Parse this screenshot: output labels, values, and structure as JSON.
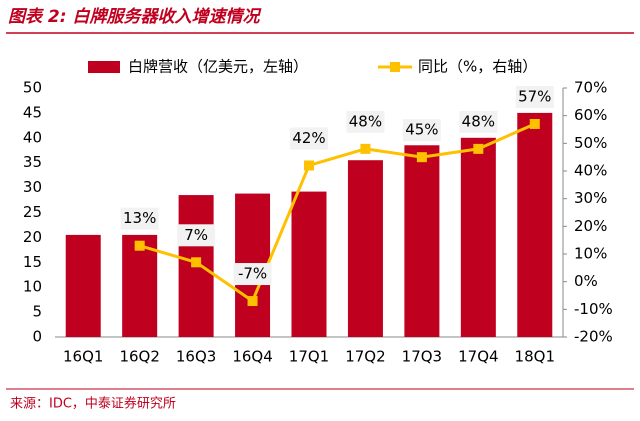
{
  "chart_data": {
    "type": "combo",
    "title": "图表 2: 白牌服务器收入增速情况",
    "source": "来源：IDC，中泰证券研究所",
    "categories": [
      "16Q1",
      "16Q2",
      "16Q3",
      "16Q4",
      "17Q1",
      "17Q2",
      "17Q3",
      "17Q4",
      "18Q1"
    ],
    "series": [
      {
        "name": "白牌营收（亿美元，左轴）",
        "type": "bar",
        "color": "#c0001f",
        "values": [
          20.5,
          20.5,
          28.5,
          28.8,
          29.2,
          35.5,
          38.5,
          40,
          45
        ]
      },
      {
        "name": "同比（%，右轴）",
        "type": "line",
        "axis": "y2",
        "color": "#ffc000",
        "values": [
          null,
          13,
          7,
          -7,
          42,
          48,
          45,
          48,
          57
        ],
        "value_labels": [
          null,
          "13%",
          "7%",
          "-7%",
          "42%",
          "48%",
          "45%",
          "48%",
          "57%"
        ]
      }
    ],
    "ylim": [
      0,
      50
    ],
    "yticks": [
      0,
      5,
      10,
      15,
      20,
      25,
      30,
      35,
      40,
      45,
      50
    ],
    "y2lim": [
      -20,
      70
    ],
    "y2ticks": [
      {
        "value": -20,
        "label": "-20%"
      },
      {
        "value": -10,
        "label": "-10%"
      },
      {
        "value": 0,
        "label": "0%"
      },
      {
        "value": 10,
        "label": "10%"
      },
      {
        "value": 20,
        "label": "20%"
      },
      {
        "value": 30,
        "label": "30%"
      },
      {
        "value": 40,
        "label": "40%"
      },
      {
        "value": 50,
        "label": "50%"
      },
      {
        "value": 60,
        "label": "60%"
      },
      {
        "value": 70,
        "label": "70%"
      }
    ],
    "grid": false
  }
}
